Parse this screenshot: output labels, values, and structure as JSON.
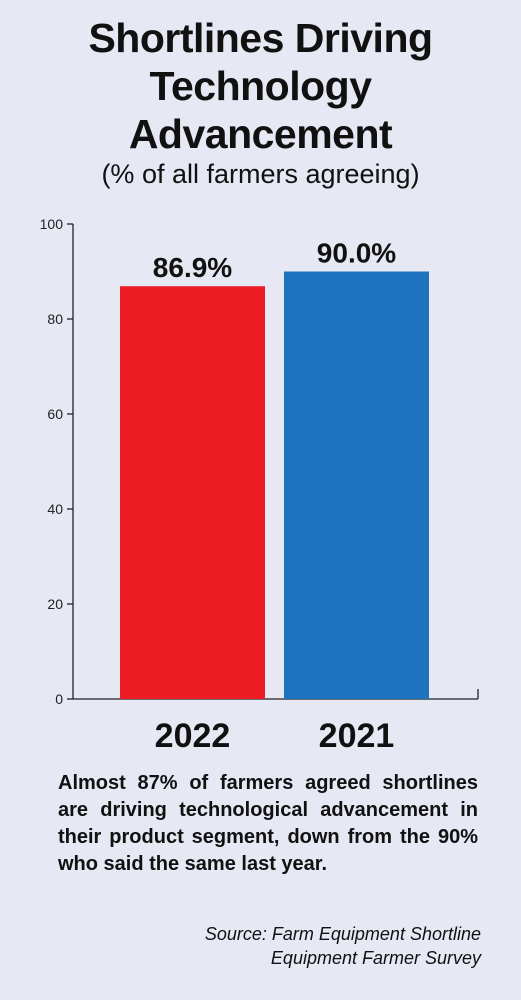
{
  "header": {
    "title_lines": [
      "Shortlines Driving",
      "Technology",
      "Advancement"
    ],
    "subtitle": "(% of all farmers agreeing)"
  },
  "chart_data": {
    "type": "bar",
    "title": "Shortlines Driving Technology Advancement",
    "subtitle": "(% of all farmers agreeing)",
    "categories": [
      "2022",
      "2021"
    ],
    "values": [
      86.9,
      90.0
    ],
    "value_labels": [
      "86.9%",
      "90.0%"
    ],
    "bar_colors": [
      "#ed1c24",
      "#1e73be"
    ],
    "ylim": [
      0,
      100
    ],
    "yticks": [
      "0",
      "20",
      "40",
      "60",
      "80",
      "100"
    ],
    "grid": false,
    "legend": "none"
  },
  "caption": "Almost 87% of farmers agreed shortlines are driving technological advancement in their product segment, down from the 90% who said the same last year.",
  "source_lines": [
    "Source: Farm Equipment Shortline",
    "Equipment Farmer Survey"
  ]
}
